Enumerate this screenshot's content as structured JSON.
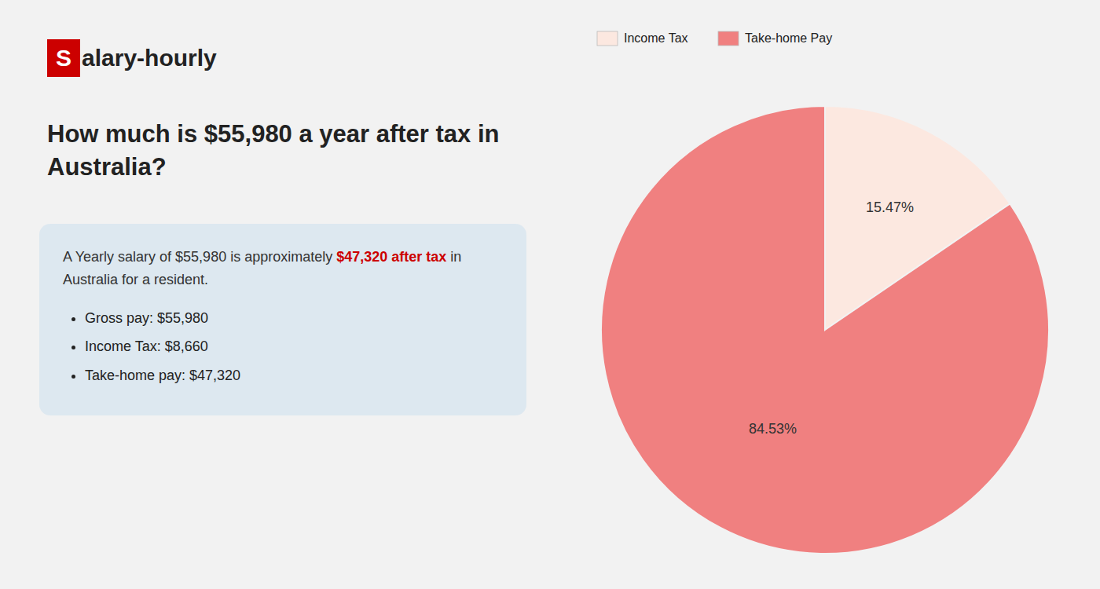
{
  "chart_data": {
    "type": "pie",
    "title": "How much is $55,980 a year after tax in Australia?",
    "categories": [
      "Income Tax",
      "Take-home Pay"
    ],
    "values": [
      15.47,
      84.53
    ],
    "value_labels": [
      "15.47%",
      "84.53%"
    ],
    "colors": [
      "#fce8e0",
      "#f08080"
    ],
    "data_labels": true,
    "legend": "top",
    "annotations": [
      {
        "text": "S",
        "color": "#cc0000"
      },
      {
        "text": "alary-hourly"
      },
      {
        "text": "A Yearly salary of $55,980 is approximately "
      },
      {
        "text": "$47,320 after tax",
        "color": "#cc0000"
      },
      {
        "text": " in"
      },
      {
        "text": "Australia for a resident."
      },
      {
        "text": "Gross pay: $55,980"
      },
      {
        "text": "Income Tax: $8,660"
      },
      {
        "text": "Take-home pay: $47,320"
      }
    ]
  }
}
